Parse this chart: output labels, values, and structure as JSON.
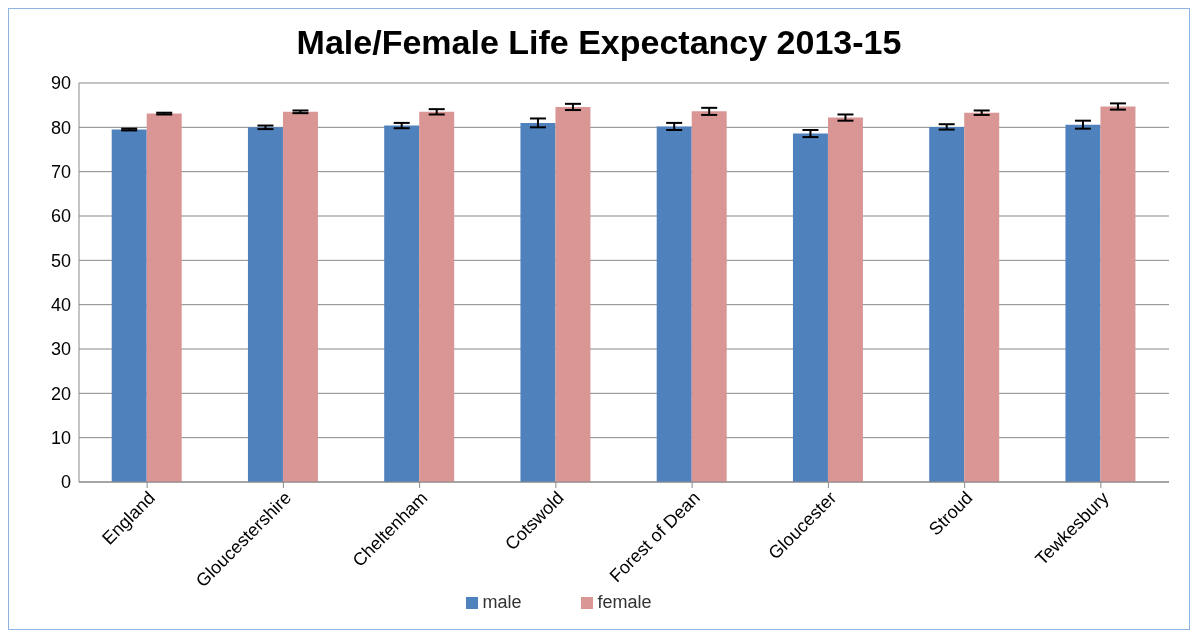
{
  "chart_data": {
    "type": "bar",
    "title": "Male/Female Life Expectancy 2013-15",
    "categories": [
      "England",
      "Gloucestershire",
      "Cheltenham",
      "Cotswold",
      "Forest of Dean",
      "Gloucester",
      "Stroud",
      "Tewkesbury"
    ],
    "series": [
      {
        "name": "male",
        "color": "#4f81bd",
        "values": [
          79.5,
          80.0,
          80.4,
          81.0,
          80.2,
          78.6,
          80.1,
          80.6
        ],
        "errors": [
          0.2,
          0.4,
          0.6,
          1.0,
          0.8,
          0.8,
          0.6,
          0.9
        ]
      },
      {
        "name": "female",
        "color": "#d99694",
        "values": [
          83.1,
          83.5,
          83.5,
          84.6,
          83.6,
          82.2,
          83.3,
          84.7
        ],
        "errors": [
          0.2,
          0.3,
          0.6,
          0.7,
          0.8,
          0.7,
          0.5,
          0.7
        ]
      }
    ],
    "ylim": [
      0,
      90
    ],
    "yticks": [
      0,
      10,
      20,
      30,
      40,
      50,
      60,
      70,
      80,
      90
    ],
    "grid": "y",
    "legend": "bottom"
  }
}
